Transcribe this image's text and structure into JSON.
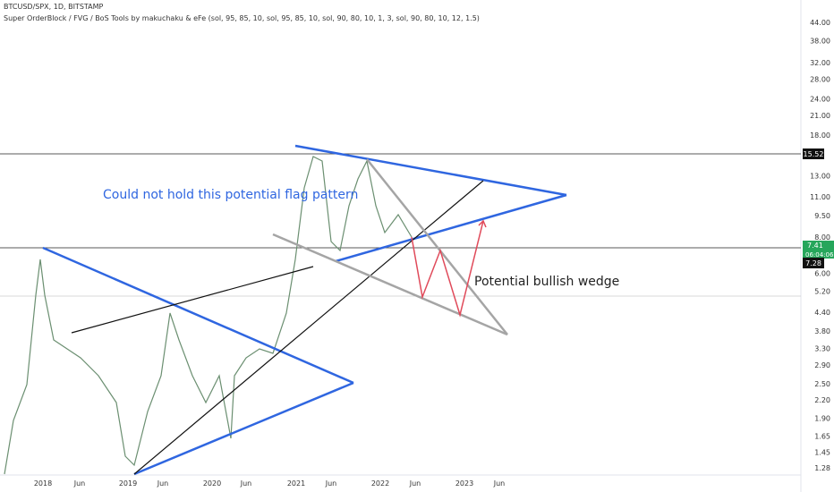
{
  "header": {
    "symbol": "BTCUSD/SPX, 1D, BITSTAMP",
    "indicator": "Super OrderBlock / FVG / BoS Tools by makuchaku & eFe (sol, 95, 85, 10, sol, 95, 85, 10, sol, 90, 80, 10, 1, 3, sol, 90, 80, 10, 12, 1.5)"
  },
  "annotations": [
    "Could not hold this potential flag pattern",
    "Potential bullish wedge"
  ],
  "price_axis": {
    "labels": [
      "44.00",
      "38.00",
      "32.00",
      "28.00",
      "24.00",
      "21.00",
      "18.00",
      "13.00",
      "11.00",
      "9.50",
      "8.00",
      "6.00",
      "5.20",
      "4.40",
      "3.80",
      "3.30",
      "2.90",
      "2.50",
      "2.20",
      "1.90",
      "1.65",
      "1.45",
      "1.28"
    ],
    "tags": [
      {
        "text": "15.52"
      },
      {
        "text": "7.41",
        "countdown": "06:04:06"
      },
      {
        "text": "7.28"
      }
    ]
  },
  "time_axis": {
    "labels": [
      "2018",
      "Jun",
      "2019",
      "Jun",
      "2020",
      "Jun",
      "2021",
      "Jun",
      "2022",
      "Jun",
      "2023",
      "Jun"
    ]
  }
}
